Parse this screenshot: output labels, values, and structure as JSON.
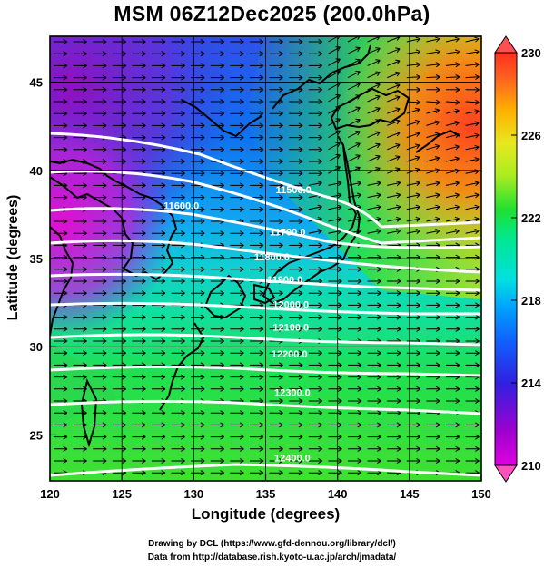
{
  "header": {
    "title": "MSM 06Z12Dec2025 (200.0hPa)"
  },
  "axes": {
    "x_title": "Longitude (degrees)",
    "y_title": "Latitude  (degrees)",
    "x_ticks": [
      "120",
      "125",
      "130",
      "135",
      "140",
      "145",
      "150"
    ],
    "y_ticks": [
      "25",
      "30",
      "35",
      "40",
      "45"
    ],
    "x_range": [
      120,
      150
    ],
    "y_range": [
      22.4,
      47.6
    ]
  },
  "colorbar": {
    "ticks": [
      "230",
      "226",
      "222",
      "218",
      "214",
      "210"
    ],
    "range": [
      210,
      230
    ]
  },
  "contours": [
    {
      "label": "11500.0",
      "lon": 135.7,
      "lat": 38.7
    },
    {
      "label": "11600.0",
      "lon": 127.9,
      "lat": 37.8
    },
    {
      "label": "11700.0",
      "lon": 135.3,
      "lat": 36.3
    },
    {
      "label": "11800.0",
      "lon": 134.2,
      "lat": 34.9
    },
    {
      "label": "11900.0",
      "lon": 135.1,
      "lat": 33.6
    },
    {
      "label": "12000.0",
      "lon": 135.5,
      "lat": 32.2
    },
    {
      "label": "12100.0",
      "lon": 135.5,
      "lat": 30.9
    },
    {
      "label": "12200.0",
      "lon": 135.4,
      "lat": 29.4
    },
    {
      "label": "12300.0",
      "lon": 135.6,
      "lat": 27.2
    },
    {
      "label": "12400.0",
      "lon": 135.6,
      "lat": 23.5
    }
  ],
  "footer": {
    "credit1": "Drawing by DCL (https://www.gfd-dennou.org/library/dcl/)",
    "credit2": "Data from http://database.rish.kyoto-u.ac.jp/arch/jmadata/"
  }
}
